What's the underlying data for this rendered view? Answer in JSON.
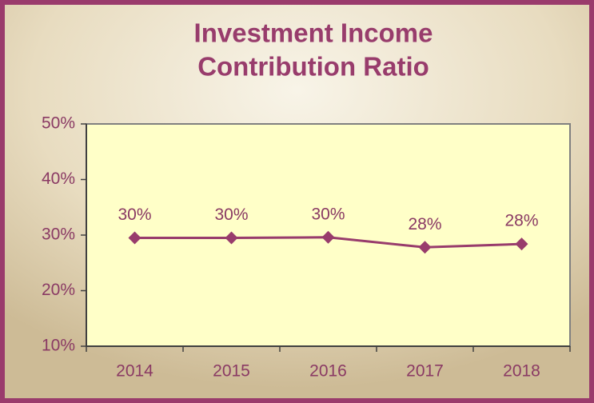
{
  "chart_data": {
    "type": "line",
    "title": [
      "Investment Income",
      "Contribution Ratio"
    ],
    "categories": [
      "2014",
      "2015",
      "2016",
      "2017",
      "2018"
    ],
    "series": [
      {
        "color": "#983c6c",
        "values": [
          29.5,
          29.5,
          29.6,
          27.8,
          28.4
        ],
        "value_labels": [
          "30%",
          "30%",
          "30%",
          "28%",
          "28%"
        ]
      }
    ],
    "ylim": [
      10,
      50
    ],
    "yticks": [
      {
        "value": 10,
        "label": "10%"
      },
      {
        "value": 20,
        "label": "20%"
      },
      {
        "value": 30,
        "label": "30%"
      },
      {
        "value": 40,
        "label": "40%"
      },
      {
        "value": 50,
        "label": "50%"
      }
    ],
    "grid": false
  }
}
